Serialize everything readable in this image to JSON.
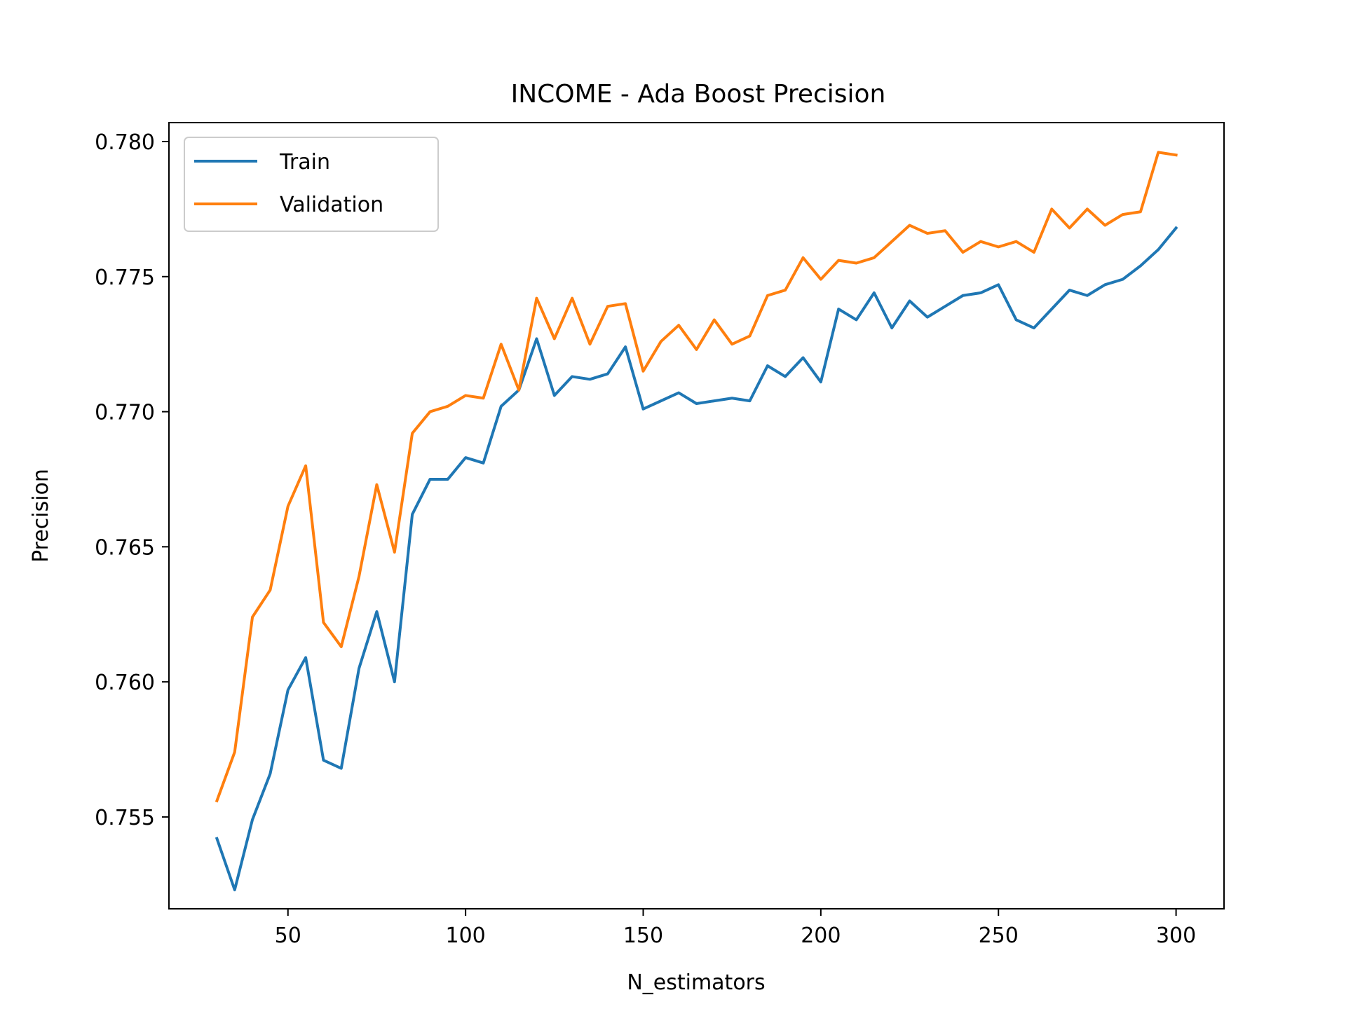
{
  "chart_data": {
    "type": "line",
    "title": "INCOME - Ada Boost Precision",
    "xlabel": "N_estimators",
    "ylabel": "Precision",
    "xlim": [
      16.5,
      313.5
    ],
    "ylim": [
      0.7516,
      0.7807
    ],
    "xticks": [
      50,
      100,
      150,
      200,
      250,
      300
    ],
    "xtick_labels": [
      "50",
      "100",
      "150",
      "200",
      "250",
      "300"
    ],
    "yticks": [
      0.755,
      0.76,
      0.765,
      0.77,
      0.775,
      0.78
    ],
    "ytick_labels": [
      "0.755",
      "0.760",
      "0.765",
      "0.770",
      "0.775",
      "0.780"
    ],
    "grid": false,
    "legend_position": "upper-left",
    "x": [
      30,
      35,
      40,
      45,
      50,
      55,
      60,
      65,
      70,
      75,
      80,
      85,
      90,
      95,
      100,
      105,
      110,
      115,
      120,
      125,
      130,
      135,
      140,
      145,
      150,
      155,
      160,
      165,
      170,
      175,
      180,
      185,
      190,
      195,
      200,
      205,
      210,
      215,
      220,
      225,
      230,
      235,
      240,
      245,
      250,
      255,
      260,
      265,
      270,
      275,
      280,
      285,
      290,
      295,
      300
    ],
    "series": [
      {
        "name": "Train",
        "color": "#1f77b4",
        "values": [
          0.7542,
          0.7523,
          0.7549,
          0.7566,
          0.7597,
          0.7609,
          0.7571,
          0.7568,
          0.7605,
          0.7626,
          0.76,
          0.7662,
          0.7675,
          0.7675,
          0.7683,
          0.7681,
          0.7702,
          0.7708,
          0.7727,
          0.7706,
          0.7713,
          0.7712,
          0.7714,
          0.7724,
          0.7701,
          0.7704,
          0.7707,
          0.7703,
          0.7704,
          0.7705,
          0.7704,
          0.7717,
          0.7713,
          0.772,
          0.7711,
          0.7738,
          0.7734,
          0.7744,
          0.7731,
          0.7741,
          0.7735,
          0.7739,
          0.7743,
          0.7744,
          0.7747,
          0.7734,
          0.7731,
          0.7738,
          0.7745,
          0.7743,
          0.7747,
          0.7749,
          0.7754,
          0.776,
          0.7768
        ]
      },
      {
        "name": "Validation",
        "color": "#ff7f0e",
        "values": [
          0.7556,
          0.7574,
          0.7624,
          0.7634,
          0.7665,
          0.768,
          0.7622,
          0.7613,
          0.7639,
          0.7673,
          0.7648,
          0.7692,
          0.77,
          0.7702,
          0.7706,
          0.7705,
          0.7725,
          0.7708,
          0.7742,
          0.7727,
          0.7742,
          0.7725,
          0.7739,
          0.774,
          0.7715,
          0.7726,
          0.7732,
          0.7723,
          0.7734,
          0.7725,
          0.7728,
          0.7743,
          0.7745,
          0.7757,
          0.7749,
          0.7756,
          0.7755,
          0.7757,
          0.7763,
          0.7769,
          0.7766,
          0.7767,
          0.7759,
          0.7763,
          0.7761,
          0.7763,
          0.7759,
          0.7775,
          0.7768,
          0.7775,
          0.7769,
          0.7773,
          0.7774,
          0.7796,
          0.7795
        ]
      }
    ]
  }
}
